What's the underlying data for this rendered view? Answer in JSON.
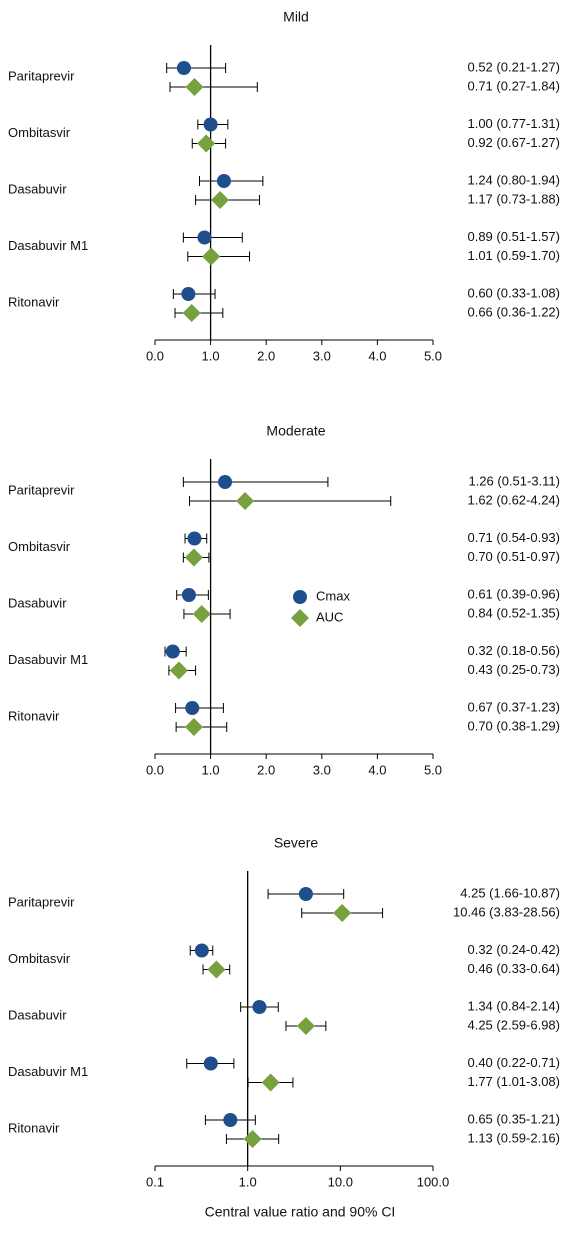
{
  "chart_data": [
    {
      "type": "forest",
      "title": "Mild",
      "categories": [
        "Paritaprevir",
        "Ombitasvir",
        "Dasabuvir",
        "Dasabuvir M1",
        "Ritonavir"
      ],
      "series": [
        {
          "color": "#1f4e8c",
          "marker": "circle",
          "values": [
            0.52,
            1.0,
            1.24,
            0.89,
            0.6
          ],
          "lower": [
            0.21,
            0.77,
            0.8,
            0.51,
            0.33
          ],
          "upper": [
            1.27,
            1.31,
            1.94,
            1.57,
            1.08
          ],
          "value_labels": [
            "0.52 (0.21-1.27)",
            "1.00 (0.77-1.31)",
            "1.24 (0.80-1.94)",
            "0.89 (0.51-1.57)",
            "0.60 (0.33-1.08)"
          ]
        },
        {
          "color": "#77a03f",
          "marker": "diamond",
          "values": [
            0.71,
            0.92,
            1.17,
            1.01,
            0.66
          ],
          "lower": [
            0.27,
            0.67,
            0.73,
            0.59,
            0.36
          ],
          "upper": [
            1.84,
            1.27,
            1.88,
            1.7,
            1.22
          ],
          "value_labels": [
            "0.71 (0.27-1.84)",
            "0.92 (0.67-1.27)",
            "1.17 (0.73-1.88)",
            "1.01 (0.59-1.70)",
            "0.66 (0.36-1.22)"
          ]
        }
      ],
      "xscale": "linear",
      "xlim": [
        0,
        5
      ],
      "reference_line": 1,
      "xticks": [
        {
          "value": 0,
          "label": "0.0"
        },
        {
          "value": 1,
          "label": "1.0"
        },
        {
          "value": 2,
          "label": "2.0"
        },
        {
          "value": 3,
          "label": "3.0"
        },
        {
          "value": 4,
          "label": "4.0"
        },
        {
          "value": 5,
          "label": "5.0"
        }
      ]
    },
    {
      "type": "forest",
      "title": "Moderate",
      "categories": [
        "Paritaprevir",
        "Ombitasvir",
        "Dasabuvir",
        "Dasabuvir M1",
        "Ritonavir"
      ],
      "series": [
        {
          "name": "Cmax",
          "color": "#1f4e8c",
          "marker": "circle",
          "values": [
            1.26,
            0.71,
            0.61,
            0.32,
            0.67
          ],
          "lower": [
            0.51,
            0.54,
            0.39,
            0.18,
            0.37
          ],
          "upper": [
            3.11,
            0.93,
            0.96,
            0.56,
            1.23
          ],
          "value_labels": [
            "1.26 (0.51-3.11)",
            "0.71 (0.54-0.93)",
            "0.61 (0.39-0.96)",
            "0.32 (0.18-0.56)",
            "0.67 (0.37-1.23)"
          ]
        },
        {
          "name": "AUC",
          "color": "#77a03f",
          "marker": "diamond",
          "values": [
            1.62,
            0.7,
            0.84,
            0.43,
            0.7
          ],
          "lower": [
            0.62,
            0.51,
            0.52,
            0.25,
            0.38
          ],
          "upper": [
            4.24,
            0.97,
            1.35,
            0.73,
            1.29
          ],
          "value_labels": [
            "1.62 (0.62-4.24)",
            "0.70 (0.51-0.97)",
            "0.84 (0.52-1.35)",
            "0.43 (0.25-0.73)",
            "0.70 (0.38-1.29)"
          ]
        }
      ],
      "legend": true,
      "xscale": "linear",
      "xlim": [
        0,
        5
      ],
      "reference_line": 1,
      "xticks": [
        {
          "value": 0,
          "label": "0.0"
        },
        {
          "value": 1,
          "label": "1.0"
        },
        {
          "value": 2,
          "label": "2.0"
        },
        {
          "value": 3,
          "label": "3.0"
        },
        {
          "value": 4,
          "label": "4.0"
        },
        {
          "value": 5,
          "label": "5.0"
        }
      ]
    },
    {
      "type": "forest",
      "title": "Severe",
      "categories": [
        "Paritaprevir",
        "Ombitasvir",
        "Dasabuvir",
        "Dasabuvir M1",
        "Ritonavir"
      ],
      "series": [
        {
          "color": "#1f4e8c",
          "marker": "circle",
          "values": [
            4.25,
            0.32,
            1.34,
            0.4,
            0.65
          ],
          "lower": [
            1.66,
            0.24,
            0.84,
            0.22,
            0.35
          ],
          "upper": [
            10.87,
            0.42,
            2.14,
            0.71,
            1.21
          ],
          "value_labels": [
            "4.25 (1.66-10.87)",
            "0.32 (0.24-0.42)",
            "1.34 (0.84-2.14)",
            "0.40 (0.22-0.71)",
            "0.65 (0.35-1.21)"
          ]
        },
        {
          "color": "#77a03f",
          "marker": "diamond",
          "values": [
            10.46,
            0.46,
            4.25,
            1.77,
            1.13
          ],
          "lower": [
            3.83,
            0.33,
            2.59,
            1.01,
            0.59
          ],
          "upper": [
            28.56,
            0.64,
            6.98,
            3.08,
            2.16
          ],
          "value_labels": [
            "10.46 (3.83-28.56)",
            "0.46 (0.33-0.64)",
            "4.25 (2.59-6.98)",
            "1.77 (1.01-3.08)",
            "1.13 (0.59-2.16)"
          ]
        }
      ],
      "xscale": "log",
      "xlim": [
        0.1,
        100
      ],
      "reference_line": 1,
      "xticks": [
        0.1,
        {
          "value": 1,
          "label": "1.0"
        },
        {
          "value": 10,
          "label": "10.0"
        },
        {
          "value": 100,
          "label": "100.0"
        }
      ],
      "xlabel": "Central value ratio and 90% CI"
    }
  ]
}
